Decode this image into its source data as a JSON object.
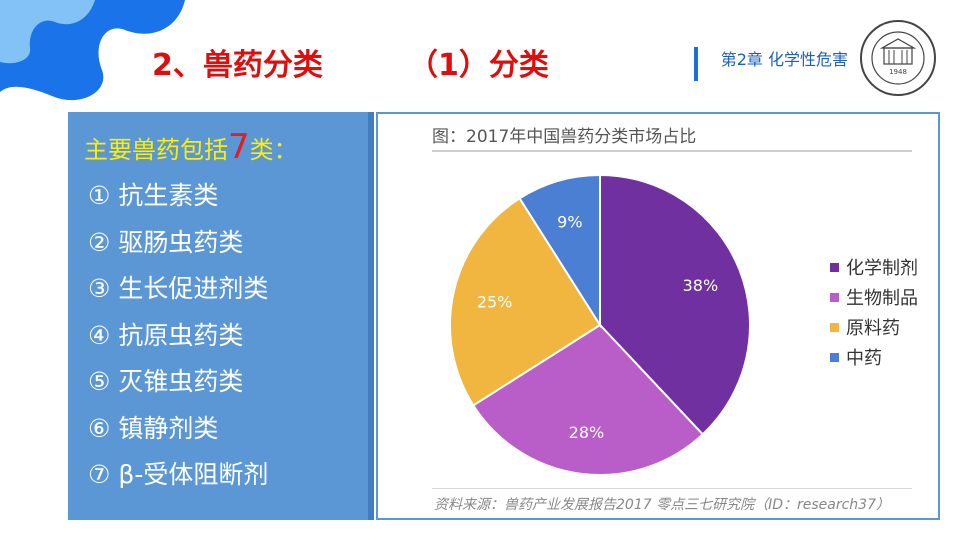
{
  "slide": {
    "title_main": "2、兽药分类",
    "title_sub": "（1）分类",
    "chapter": "第2章 化学性危害",
    "logo": {
      "text": "1948",
      "icon": "university-seal"
    }
  },
  "left_panel": {
    "heading_before": "主要兽药包括",
    "heading_num": "7",
    "heading_after": "类：",
    "items": [
      "① 抗生素类",
      "② 驱肠虫药类",
      "③ 生长促进剂类",
      "④ 抗原虫药类",
      "⑤ 灭锥虫药类",
      "⑥ 镇静剂类",
      "⑦ β-受体阻断剂"
    ]
  },
  "chart_data": {
    "type": "pie",
    "title": "图：2017年中国兽药分类市场占比",
    "source": "资料来源：兽药产业发展报告2017  零点三七研究院（ID：research37）",
    "categories": [
      "化学制剂",
      "生物制品",
      "原料药",
      "中药"
    ],
    "values": [
      38,
      28,
      25,
      9
    ],
    "labels": [
      "38%",
      "28%",
      "25%",
      "9%"
    ],
    "colors": [
      "#7030a0",
      "#b95ec8",
      "#f0b63f",
      "#4a7fd4"
    ],
    "legend_position": "right"
  },
  "colors": {
    "title": "#e00d0d",
    "panel": "#5b97d5",
    "heading": "#ffee00",
    "accent_blue": "#1a6fd8"
  }
}
